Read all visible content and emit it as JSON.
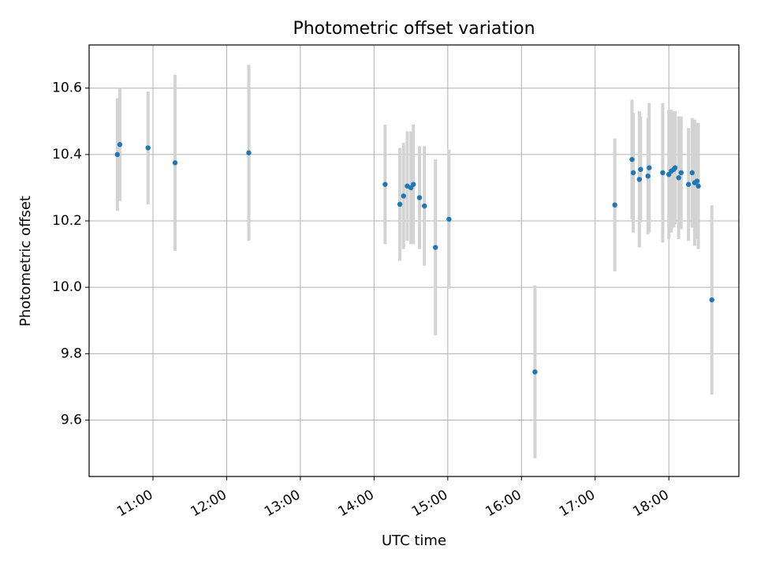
{
  "chart_data": {
    "type": "scatter",
    "title": "Photometric offset variation",
    "xlabel": "UTC time",
    "ylabel": "Photometric offset",
    "x_tick_labels": [
      "11:00",
      "12:00",
      "13:00",
      "14:00",
      "15:00",
      "16:00",
      "17:00",
      "18:00"
    ],
    "y_tick_labels": [
      "9.6",
      "9.8",
      "10.0",
      "10.2",
      "10.4",
      "10.6"
    ],
    "xlim": [
      "10:08",
      "18:57"
    ],
    "ylim": [
      9.43,
      10.73
    ],
    "grid": true,
    "legend": "none",
    "point_color": "#1f77b4",
    "errorbar_color": "#d3d3d3",
    "series": [
      {
        "points": [
          {
            "x": "10:31",
            "y": 10.4,
            "err": 0.17
          },
          {
            "x": "10:33",
            "y": 10.43,
            "err": 0.17
          },
          {
            "x": "10:56",
            "y": 10.42,
            "err": 0.17
          },
          {
            "x": "11:18",
            "y": 10.375,
            "err": 0.265
          },
          {
            "x": "12:18",
            "y": 10.405,
            "err": 0.265
          },
          {
            "x": "14:09",
            "y": 10.31,
            "err": 0.18
          },
          {
            "x": "14:21",
            "y": 10.25,
            "err": 0.17
          },
          {
            "x": "14:24",
            "y": 10.275,
            "err": 0.16
          },
          {
            "x": "14:27",
            "y": 10.305,
            "err": 0.165
          },
          {
            "x": "14:30",
            "y": 10.3,
            "err": 0.17
          },
          {
            "x": "14:32",
            "y": 10.31,
            "err": 0.18
          },
          {
            "x": "14:37",
            "y": 10.27,
            "err": 0.155
          },
          {
            "x": "14:41",
            "y": 10.245,
            "err": 0.18
          },
          {
            "x": "14:50",
            "y": 10.12,
            "err": 0.265
          },
          {
            "x": "15:01",
            "y": 10.205,
            "err": 0.21
          },
          {
            "x": "16:11",
            "y": 9.745,
            "err": 0.26
          },
          {
            "x": "17:16",
            "y": 10.248,
            "err": 0.2
          },
          {
            "x": "17:30",
            "y": 10.385,
            "err": 0.18
          },
          {
            "x": "17:31",
            "y": 10.345,
            "err": 0.18
          },
          {
            "x": "17:36",
            "y": 10.325,
            "err": 0.205
          },
          {
            "x": "17:37",
            "y": 10.355,
            "err": 0.16
          },
          {
            "x": "17:43",
            "y": 10.335,
            "err": 0.175
          },
          {
            "x": "17:44",
            "y": 10.36,
            "err": 0.195
          },
          {
            "x": "17:55",
            "y": 10.345,
            "err": 0.21
          },
          {
            "x": "18:00",
            "y": 10.34,
            "err": 0.195
          },
          {
            "x": "18:02",
            "y": 10.35,
            "err": 0.185
          },
          {
            "x": "18:04",
            "y": 10.355,
            "err": 0.175
          },
          {
            "x": "18:05",
            "y": 10.36,
            "err": 0.17
          },
          {
            "x": "18:08",
            "y": 10.33,
            "err": 0.185
          },
          {
            "x": "18:10",
            "y": 10.345,
            "err": 0.17
          },
          {
            "x": "18:16",
            "y": 10.31,
            "err": 0.17
          },
          {
            "x": "18:19",
            "y": 10.345,
            "err": 0.165
          },
          {
            "x": "18:21",
            "y": 10.315,
            "err": 0.19
          },
          {
            "x": "18:23",
            "y": 10.32,
            "err": 0.175
          },
          {
            "x": "18:24",
            "y": 10.305,
            "err": 0.19
          },
          {
            "x": "18:35",
            "y": 9.962,
            "err": 0.285
          }
        ]
      }
    ]
  }
}
